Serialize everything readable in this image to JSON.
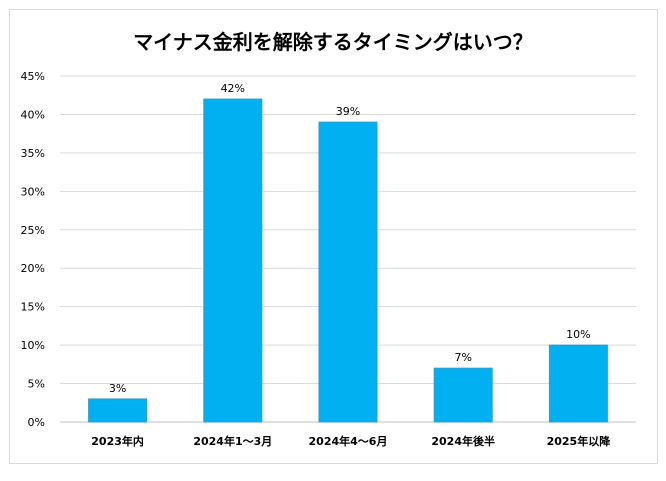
{
  "chart_data": {
    "type": "bar",
    "title": "マイナス金利を解除するタイミングはいつ？",
    "categories": [
      "2023年内",
      "2024年1～3月",
      "2024年4～6月",
      "2024年後半",
      "2025年以降"
    ],
    "values": [
      3,
      42,
      39,
      7,
      10
    ],
    "data_labels": [
      "3%",
      "42%",
      "39%",
      "7%",
      "10%"
    ],
    "yticks": [
      "0%",
      "5%",
      "10%",
      "15%",
      "20%",
      "25%",
      "30%",
      "35%",
      "40%",
      "45%"
    ],
    "ylim": [
      0,
      45
    ],
    "ystep": 5,
    "xlabel": "",
    "ylabel": "",
    "grid": true,
    "legend": "none",
    "bar_color": "#00b0f0",
    "bar_edge_color": "#2f9ccf",
    "grid_color": "#d9d9d9"
  }
}
